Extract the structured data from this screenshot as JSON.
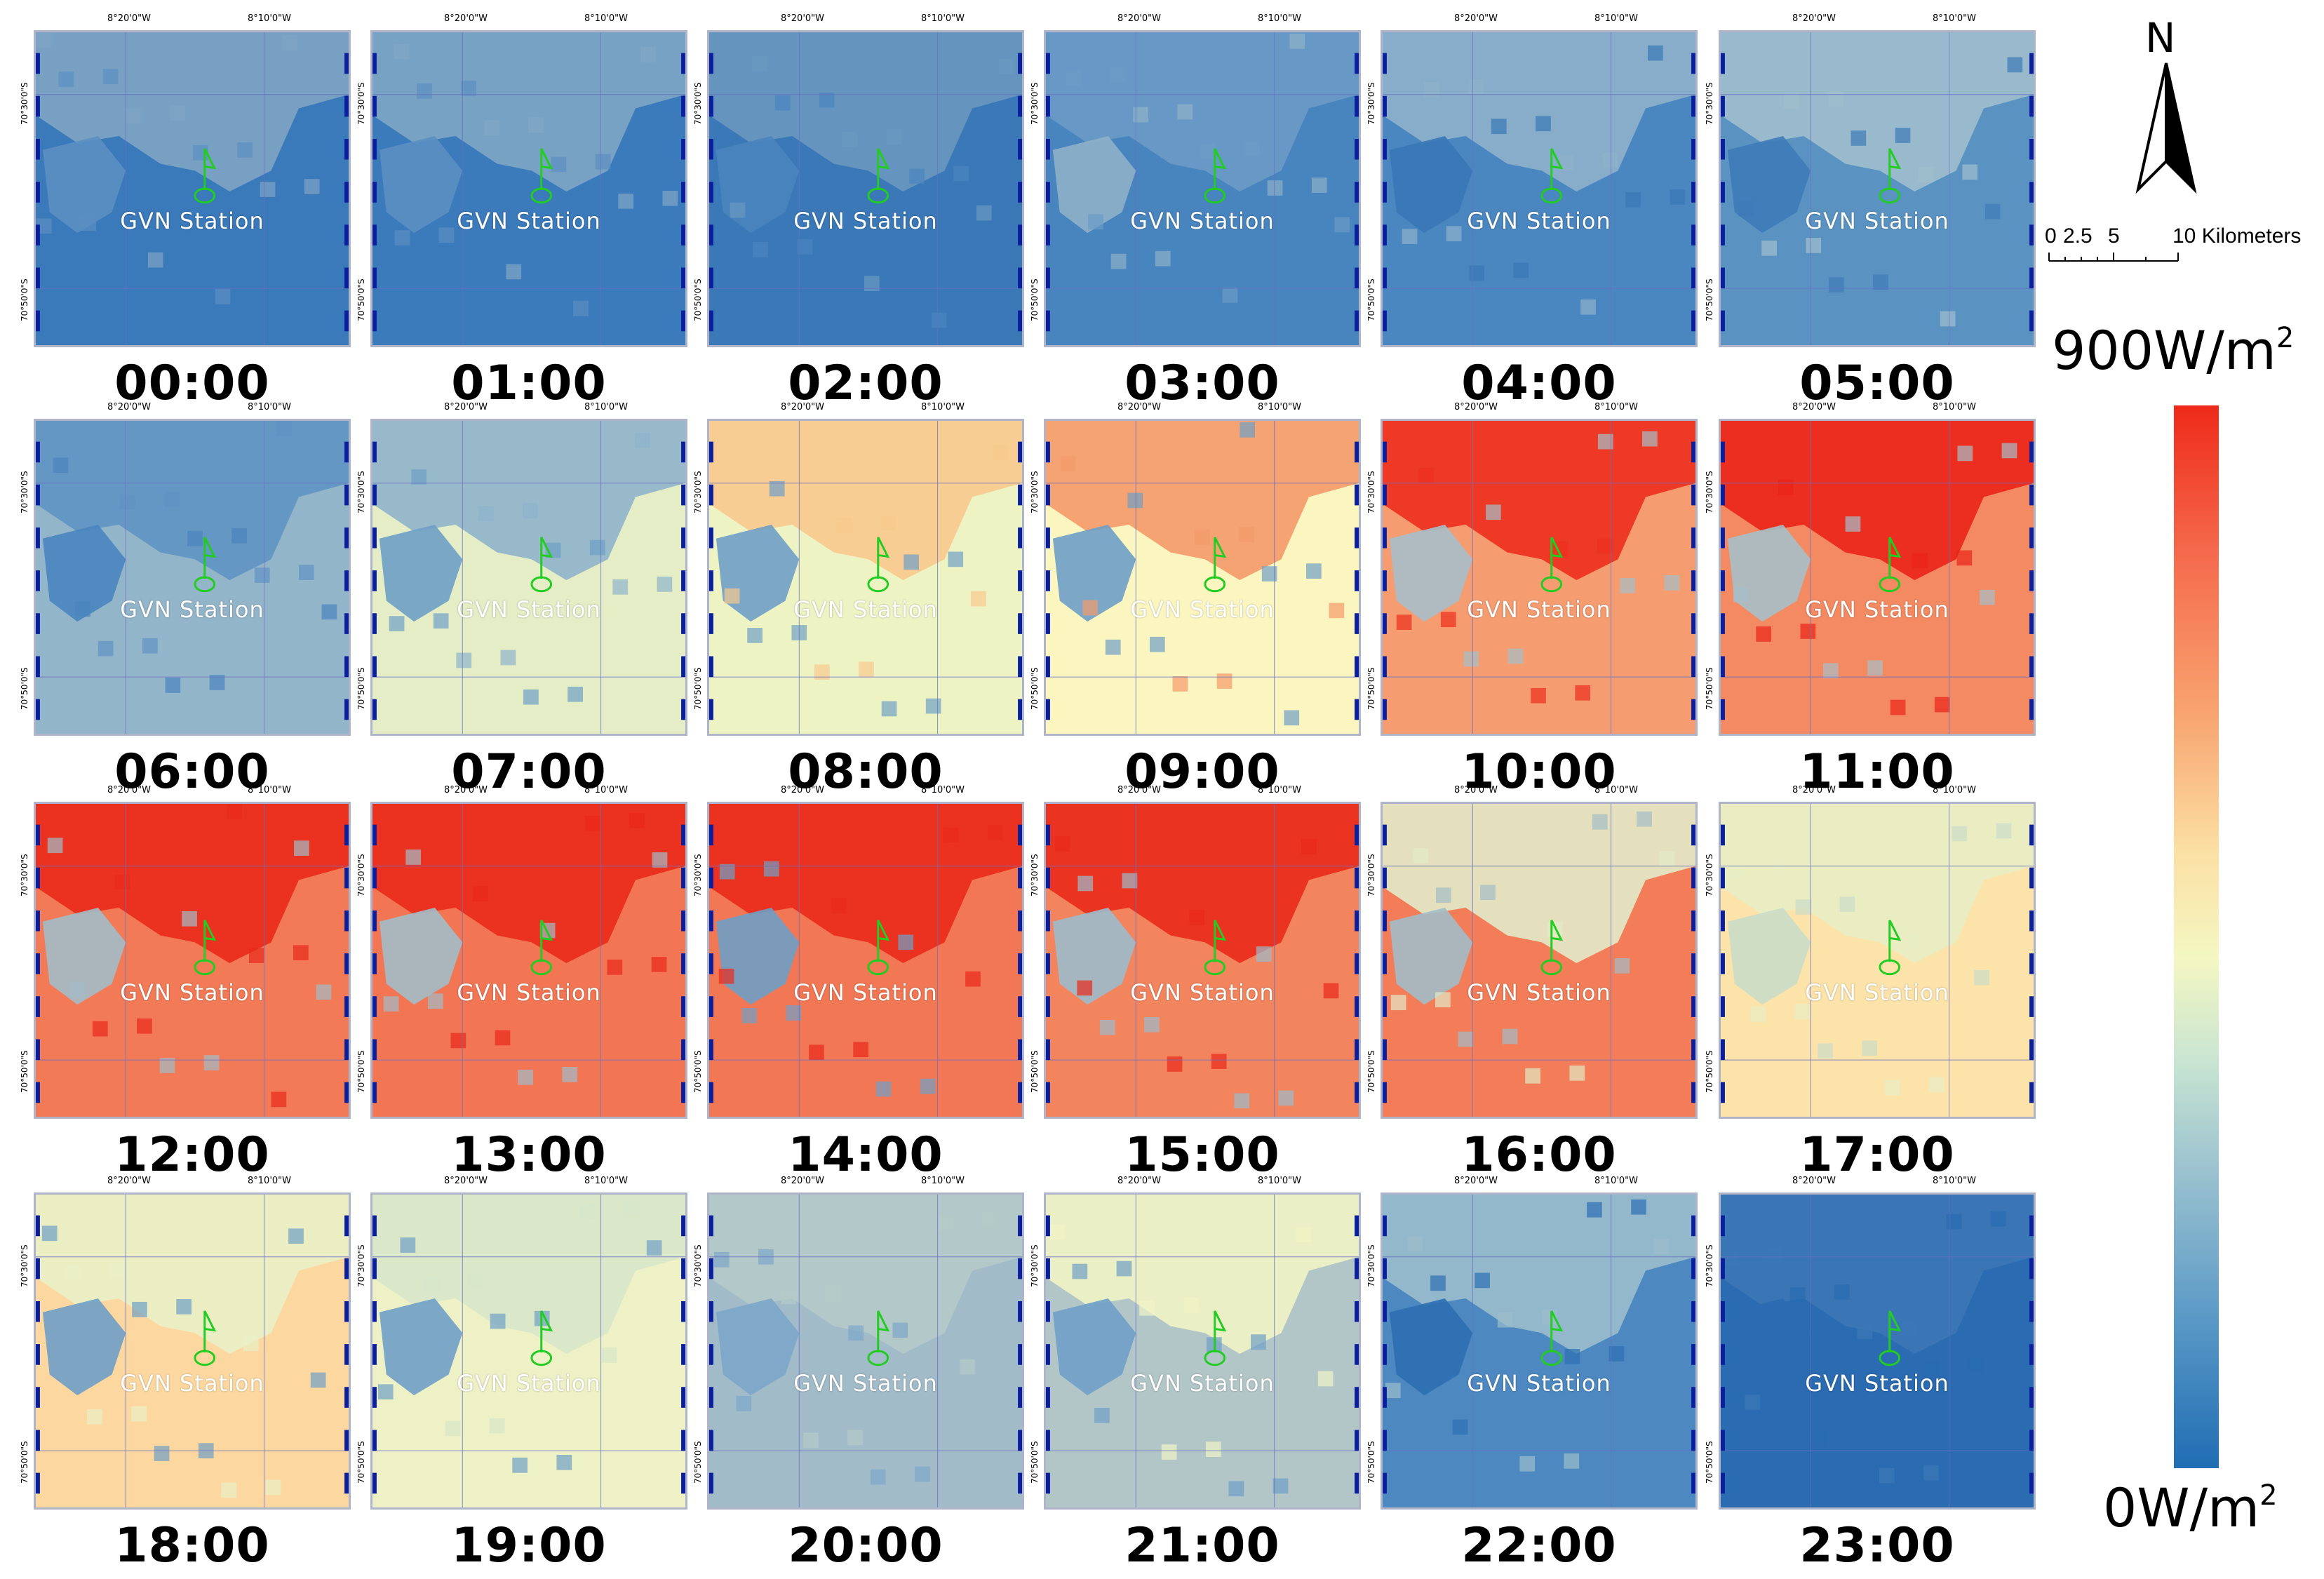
{
  "panels": [
    {
      "time": "00:00",
      "station": "GVN Station",
      "base": "#3a79ba",
      "patches": [
        {
          "c": "#7fa4c4"
        },
        {
          "c": "#5b8fc2"
        }
      ]
    },
    {
      "time": "01:00",
      "station": "GVN Station",
      "base": "#3b7abb",
      "patches": [
        {
          "c": "#80a6c4"
        },
        {
          "c": "#5b8fc2"
        }
      ]
    },
    {
      "time": "02:00",
      "station": "GVN Station",
      "base": "#3a78b8",
      "patches": [
        {
          "c": "#6a98c0"
        },
        {
          "c": "#4a84be"
        }
      ]
    },
    {
      "time": "03:00",
      "station": "GVN Station",
      "base": "#4884bd",
      "patches": [
        {
          "c": "#6b9bc6"
        },
        {
          "c": "#8eb0c8"
        }
      ]
    },
    {
      "time": "04:00",
      "station": "GVN Station",
      "base": "#4a86bf",
      "patches": [
        {
          "c": "#8fb1cb"
        },
        {
          "c": "#3977b7"
        }
      ]
    },
    {
      "time": "05:00",
      "station": "GVN Station",
      "base": "#5a93c2",
      "patches": [
        {
          "c": "#9fbfcd"
        },
        {
          "c": "#3e7bb8"
        }
      ]
    },
    {
      "time": "06:00",
      "station": "GVN Station",
      "base": "#93b5c9",
      "patches": [
        {
          "c": "#5f93c3"
        },
        {
          "c": "#4a85bf"
        }
      ]
    },
    {
      "time": "07:00",
      "station": "GVN Station",
      "base": "#e4edc6",
      "patches": [
        {
          "c": "#8fb3ca"
        },
        {
          "c": "#6f9fc6"
        }
      ]
    },
    {
      "time": "08:00",
      "station": "GVN Station",
      "base": "#eef3c4",
      "patches": [
        {
          "c": "#f7c98e"
        },
        {
          "c": "#6f9fc6"
        }
      ]
    },
    {
      "time": "09:00",
      "station": "GVN Station",
      "base": "#fbf6c0",
      "patches": [
        {
          "c": "#f49a6a"
        },
        {
          "c": "#6f9fc6"
        }
      ]
    },
    {
      "time": "10:00",
      "station": "GVN Station",
      "base": "#f59c70",
      "patches": [
        {
          "c": "#ec2f1e"
        },
        {
          "c": "#a7bfc9"
        }
      ]
    },
    {
      "time": "11:00",
      "station": "GVN Station",
      "base": "#f48a62",
      "patches": [
        {
          "c": "#ea2318"
        },
        {
          "c": "#a7bfc9"
        }
      ]
    },
    {
      "time": "12:00",
      "station": "GVN Station",
      "base": "#f27a56",
      "patches": [
        {
          "c": "#ea2a1b"
        },
        {
          "c": "#a3bcc8"
        }
      ]
    },
    {
      "time": "13:00",
      "station": "GVN Station",
      "base": "#f27654",
      "patches": [
        {
          "c": "#ea2a1b"
        },
        {
          "c": "#a3bcc8"
        }
      ]
    },
    {
      "time": "14:00",
      "station": "GVN Station",
      "base": "#f27754",
      "patches": [
        {
          "c": "#ea2a1b"
        },
        {
          "c": "#6f9fc6"
        }
      ]
    },
    {
      "time": "15:00",
      "station": "GVN Station",
      "base": "#f2845e",
      "patches": [
        {
          "c": "#ea2a1b"
        },
        {
          "c": "#9dbbcc"
        }
      ]
    },
    {
      "time": "16:00",
      "station": "GVN Station",
      "base": "#f27d58",
      "patches": [
        {
          "c": "#e2eac8"
        },
        {
          "c": "#a3bcc8"
        }
      ]
    },
    {
      "time": "17:00",
      "station": "GVN Station",
      "base": "#fce3aa",
      "patches": [
        {
          "c": "#e8edc4"
        },
        {
          "c": "#cbdcc8"
        }
      ]
    },
    {
      "time": "18:00",
      "station": "GVN Station",
      "base": "#fcd8a0",
      "patches": [
        {
          "c": "#e9efc6"
        },
        {
          "c": "#6f9fc6"
        }
      ]
    },
    {
      "time": "19:00",
      "station": "GVN Station",
      "base": "#eef1c6",
      "patches": [
        {
          "c": "#d7e5c9"
        },
        {
          "c": "#6f9fc6"
        }
      ]
    },
    {
      "time": "20:00",
      "station": "GVN Station",
      "base": "#a2bbc9",
      "patches": [
        {
          "c": "#b5cac8"
        },
        {
          "c": "#7ca6c9"
        }
      ]
    },
    {
      "time": "21:00",
      "station": "GVN Station",
      "base": "#b2c6c8",
      "patches": [
        {
          "c": "#f0f3c4"
        },
        {
          "c": "#6f9fc6"
        }
      ]
    },
    {
      "time": "22:00",
      "station": "GVN Station",
      "base": "#4d89c0",
      "patches": [
        {
          "c": "#9bbccc"
        },
        {
          "c": "#2e6fb3"
        }
      ]
    },
    {
      "time": "23:00",
      "station": "GVN Station",
      "base": "#2a6bb1",
      "patches": [
        {
          "c": "#3c78b6"
        },
        {
          "c": "#2a6bb1"
        }
      ]
    }
  ],
  "graticule": {
    "lon1": "8°20'0\"W",
    "lon2": "8°10'0\"W",
    "lat1": "70°30'0\"S",
    "lat2": "70°50'0\"S"
  },
  "legend": {
    "north": "N",
    "scale_ticks": [
      "0",
      "2.5",
      "5",
      "10 Kilometers"
    ],
    "max_label": "900W/m",
    "min_label": "0W/m",
    "exponent": "2",
    "max_color": "#ee2a1a",
    "min_color": "#1f6db3"
  },
  "marker_color": "#22cc22"
}
